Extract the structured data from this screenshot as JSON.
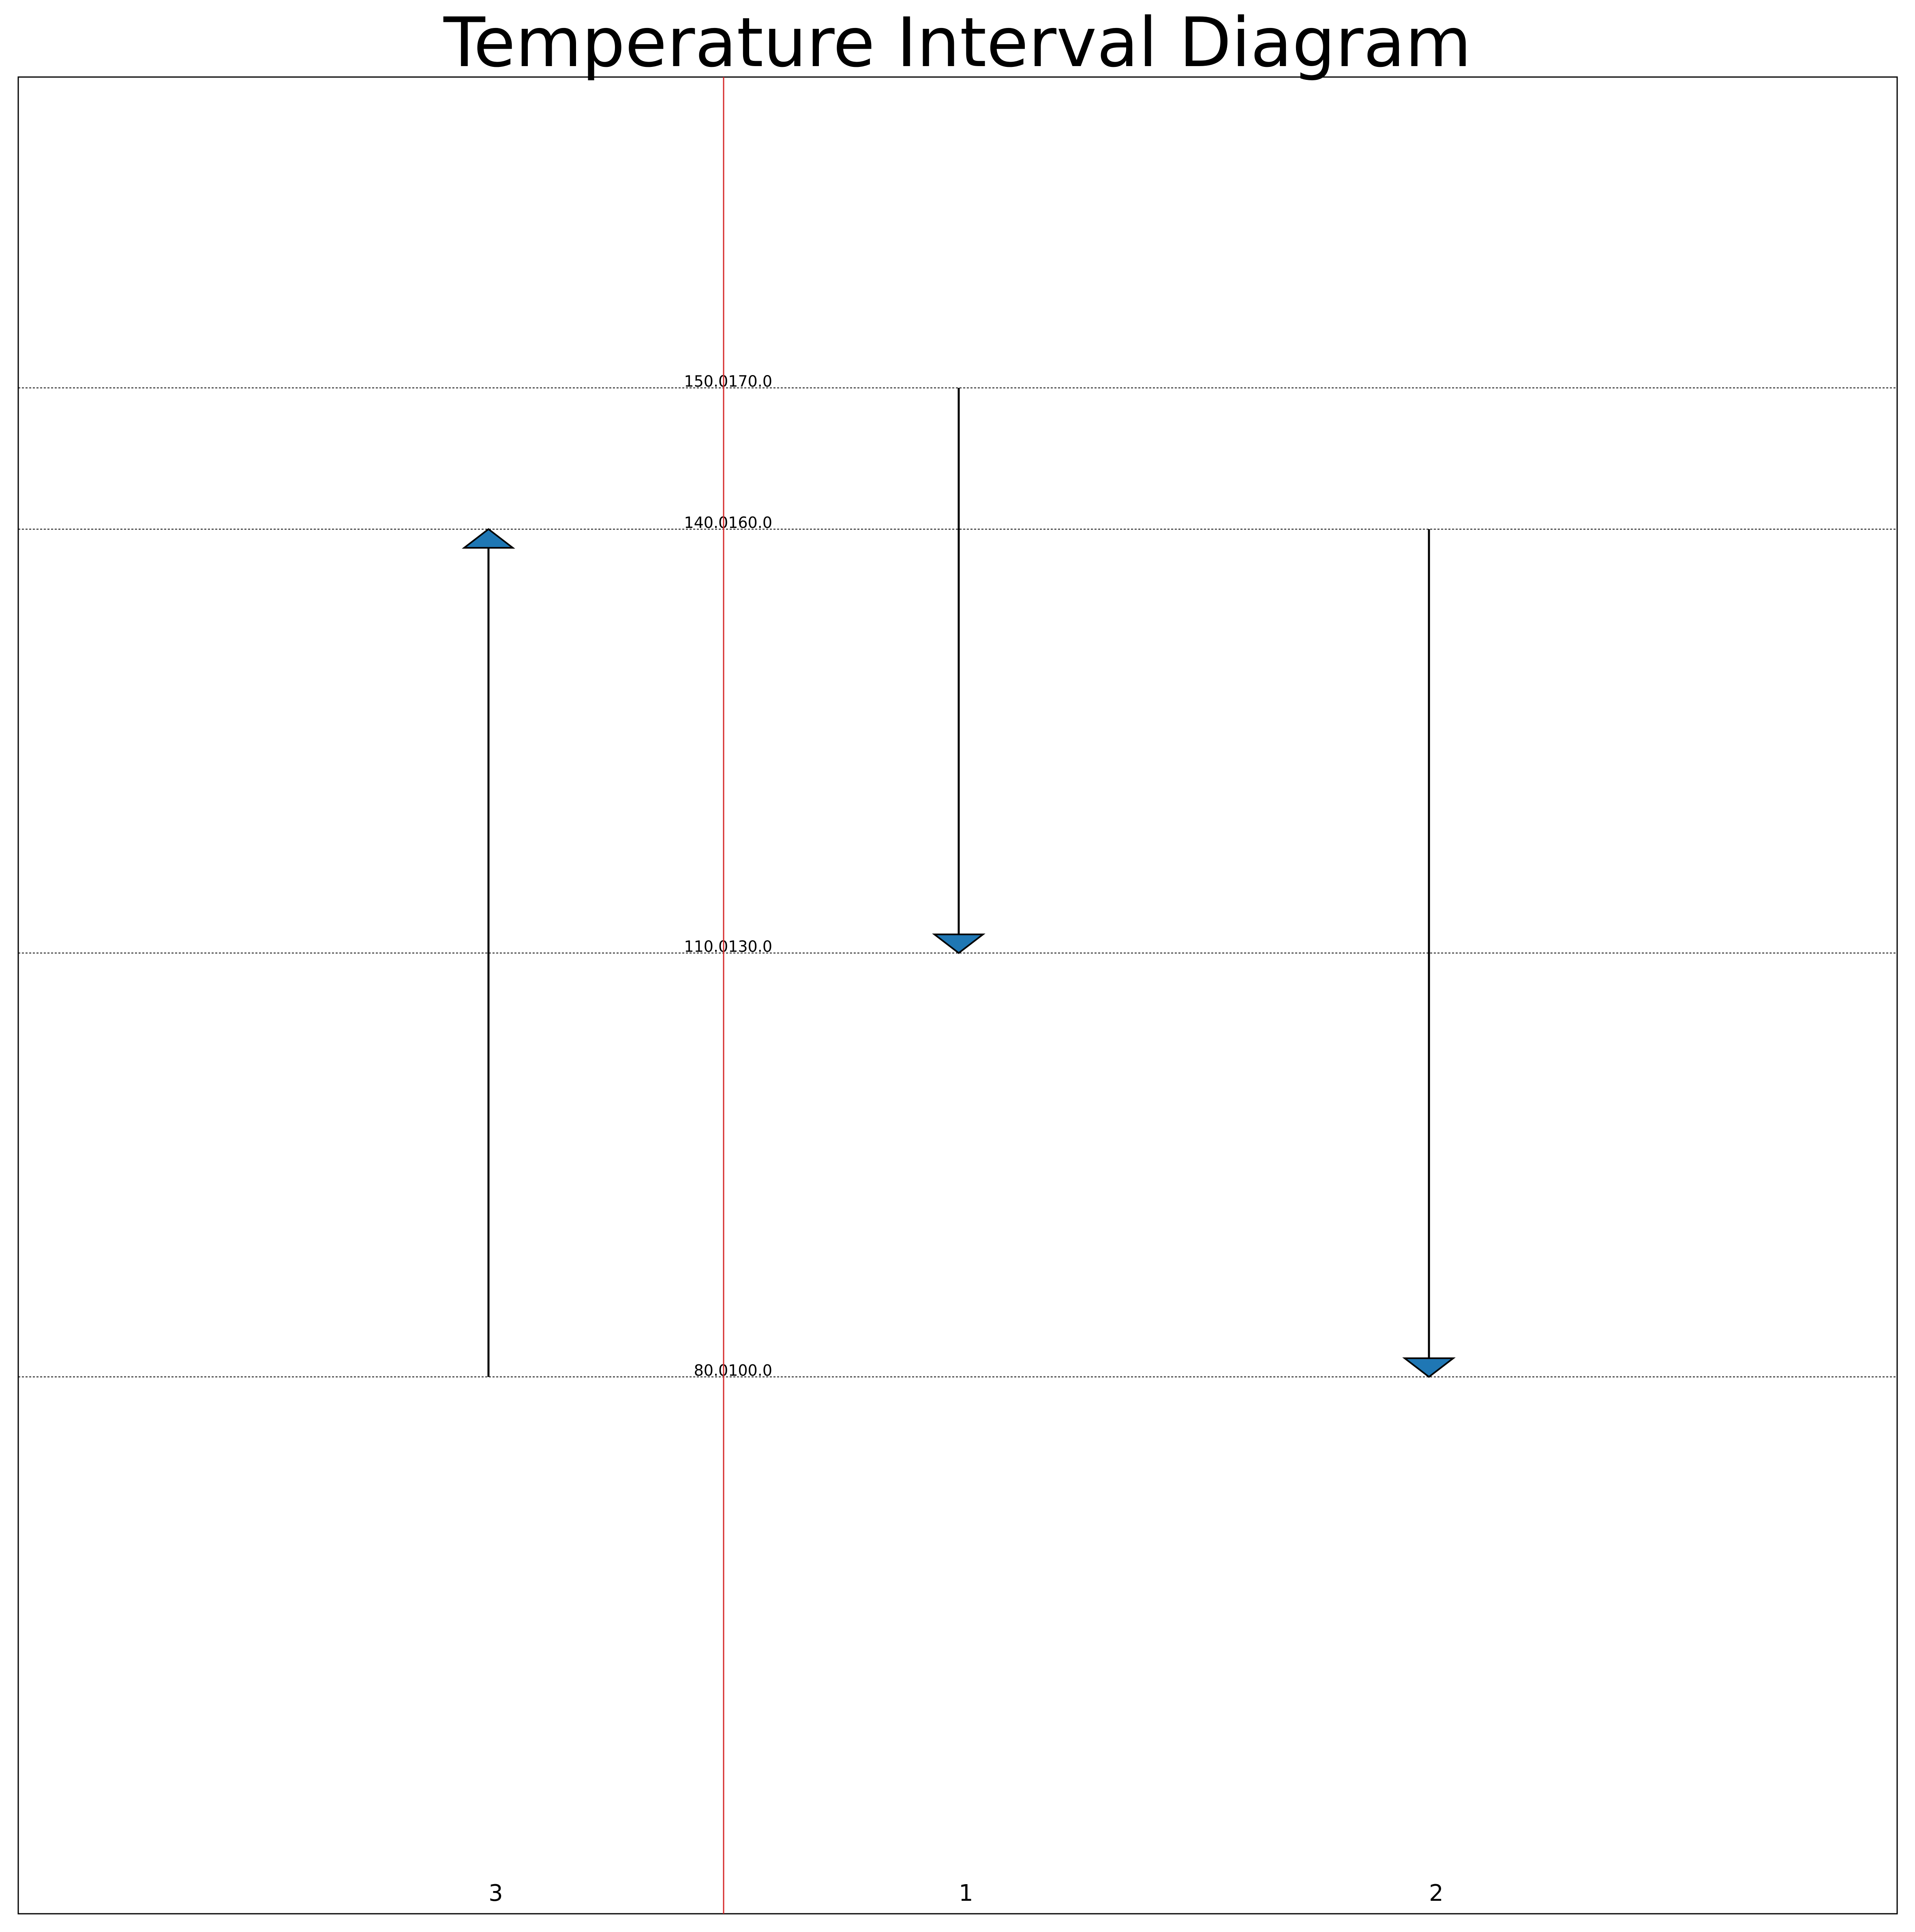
{
  "title": "Temperature Interval Diagram",
  "chart_data": {
    "type": "interval-diagram",
    "ylim": [
      62,
      192
    ],
    "interval_lines": [
      {
        "hot": 150.0,
        "cold": 170.0,
        "label": "150.0170.0"
      },
      {
        "hot": 140.0,
        "cold": 160.0,
        "label": "140.0160.0"
      },
      {
        "hot": 110.0,
        "cold": 130.0,
        "label": "110.0130.0"
      },
      {
        "hot": 80.0,
        "cold": 100.0,
        "label": "80.0100.0"
      }
    ],
    "streams": [
      {
        "id": "3",
        "from": 100.0,
        "to": 160.0,
        "direction": "up"
      },
      {
        "id": "1",
        "from": 170.0,
        "to": 130.0,
        "direction": "down"
      },
      {
        "id": "2",
        "from": 160.0,
        "to": 100.0,
        "direction": "down"
      }
    ],
    "colors": {
      "arrow_fill": "#1f77b4",
      "divider": "#d62728",
      "grid": "#000000"
    }
  }
}
